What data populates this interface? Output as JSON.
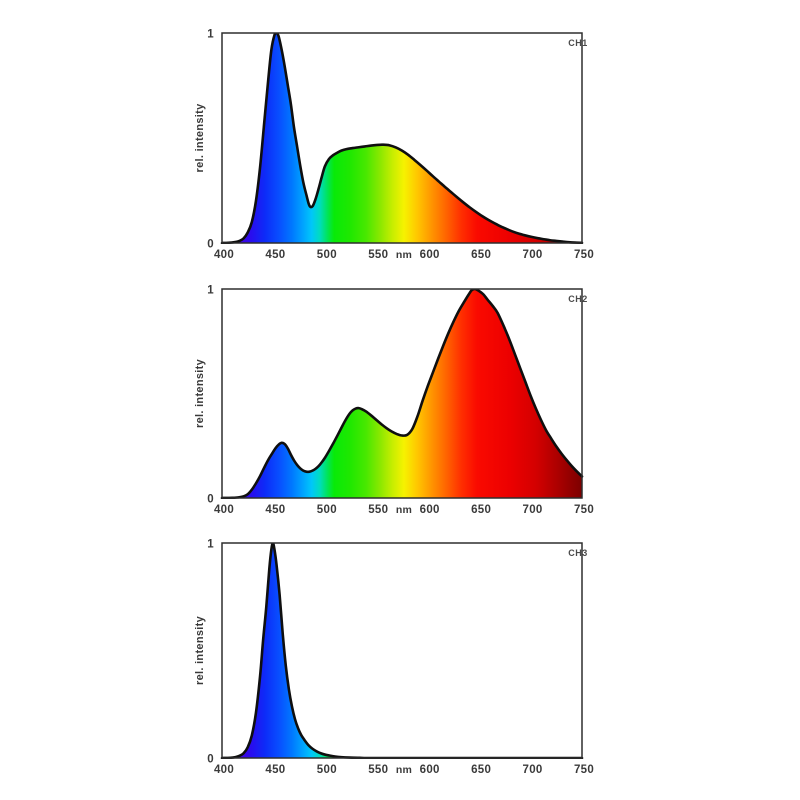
{
  "figure": {
    "background": "#ffffff",
    "border_color": "#2e2e2e",
    "curve_color": "#0f0f0f",
    "tick_text_color": "#3a3a3a",
    "channel_text_color": "#4a4a4a",
    "y_axis_label": "rel. intensity",
    "x_unit_label": "nm"
  },
  "spectrum_gradient": [
    {
      "nm": 400,
      "color": "#7000c8"
    },
    {
      "nm": 414,
      "color": "#4a00e0"
    },
    {
      "nm": 428,
      "color": "#2a0cee"
    },
    {
      "nm": 442,
      "color": "#0d2cf8"
    },
    {
      "nm": 456,
      "color": "#0850ff"
    },
    {
      "nm": 468,
      "color": "#0078ff"
    },
    {
      "nm": 478,
      "color": "#00a0ff"
    },
    {
      "nm": 487,
      "color": "#00c6fa"
    },
    {
      "nm": 495,
      "color": "#00dcc0"
    },
    {
      "nm": 502,
      "color": "#00e460"
    },
    {
      "nm": 509,
      "color": "#08ea08"
    },
    {
      "nm": 525,
      "color": "#20e800"
    },
    {
      "nm": 540,
      "color": "#48e800"
    },
    {
      "nm": 554,
      "color": "#8ce800"
    },
    {
      "nm": 566,
      "color": "#c8ee00"
    },
    {
      "nm": 577,
      "color": "#f6f200"
    },
    {
      "nm": 590,
      "color": "#ffc600"
    },
    {
      "nm": 604,
      "color": "#ff9400"
    },
    {
      "nm": 618,
      "color": "#ff6400"
    },
    {
      "nm": 633,
      "color": "#ff2e00"
    },
    {
      "nm": 648,
      "color": "#fa0a00"
    },
    {
      "nm": 680,
      "color": "#ec0000"
    },
    {
      "nm": 705,
      "color": "#d40000"
    },
    {
      "nm": 725,
      "color": "#ae0000"
    },
    {
      "nm": 750,
      "color": "#7c0000"
    }
  ],
  "chart_data": [
    {
      "type": "area",
      "channel": "CH1",
      "xlabel": "nm",
      "ylabel": "rel. intensity",
      "xlim": [
        400,
        750
      ],
      "ylim": [
        0,
        1
      ],
      "x_ticks": [
        400,
        450,
        500,
        550,
        600,
        650,
        700,
        750
      ],
      "y_ticks": [
        0,
        1
      ],
      "fill": "spectrum-gradient",
      "points": [
        [
          400,
          0
        ],
        [
          406,
          0.001
        ],
        [
          412,
          0.004
        ],
        [
          417,
          0.01
        ],
        [
          421,
          0.022
        ],
        [
          425,
          0.05
        ],
        [
          429,
          0.1
        ],
        [
          433,
          0.2
        ],
        [
          437,
          0.36
        ],
        [
          441,
          0.57
        ],
        [
          445,
          0.78
        ],
        [
          448,
          0.92
        ],
        [
          451,
          0.99
        ],
        [
          453,
          1.0
        ],
        [
          455,
          0.985
        ],
        [
          458,
          0.92
        ],
        [
          461,
          0.84
        ],
        [
          464,
          0.75
        ],
        [
          467,
          0.66
        ],
        [
          470,
          0.55
        ],
        [
          473,
          0.46
        ],
        [
          476,
          0.37
        ],
        [
          479,
          0.29
        ],
        [
          482,
          0.23
        ],
        [
          485,
          0.178
        ],
        [
          488,
          0.175
        ],
        [
          491,
          0.21
        ],
        [
          494,
          0.26
        ],
        [
          497,
          0.315
        ],
        [
          500,
          0.365
        ],
        [
          504,
          0.4
        ],
        [
          508,
          0.418
        ],
        [
          512,
          0.43
        ],
        [
          516,
          0.44
        ],
        [
          521,
          0.447
        ],
        [
          527,
          0.452
        ],
        [
          533,
          0.456
        ],
        [
          539,
          0.46
        ],
        [
          545,
          0.464
        ],
        [
          551,
          0.467
        ],
        [
          557,
          0.468
        ],
        [
          563,
          0.465
        ],
        [
          569,
          0.455
        ],
        [
          575,
          0.44
        ],
        [
          581,
          0.42
        ],
        [
          587,
          0.396
        ],
        [
          593,
          0.371
        ],
        [
          599,
          0.345
        ],
        [
          605,
          0.318
        ],
        [
          611,
          0.292
        ],
        [
          617,
          0.266
        ],
        [
          623,
          0.241
        ],
        [
          629,
          0.216
        ],
        [
          635,
          0.192
        ],
        [
          641,
          0.169
        ],
        [
          647,
          0.148
        ],
        [
          653,
          0.128
        ],
        [
          659,
          0.11
        ],
        [
          665,
          0.094
        ],
        [
          671,
          0.079
        ],
        [
          677,
          0.066
        ],
        [
          683,
          0.054
        ],
        [
          689,
          0.044
        ],
        [
          695,
          0.036
        ],
        [
          701,
          0.029
        ],
        [
          707,
          0.023
        ],
        [
          713,
          0.018
        ],
        [
          719,
          0.013
        ],
        [
          725,
          0.01
        ],
        [
          731,
          0.007
        ],
        [
          737,
          0.004
        ],
        [
          743,
          0.002
        ],
        [
          750,
          0.001
        ]
      ]
    },
    {
      "type": "area",
      "channel": "CH2",
      "xlabel": "nm",
      "ylabel": "rel. intensity",
      "xlim": [
        400,
        750
      ],
      "ylim": [
        0,
        1
      ],
      "x_ticks": [
        400,
        450,
        500,
        550,
        600,
        650,
        700,
        750
      ],
      "y_ticks": [
        0,
        1
      ],
      "fill": "spectrum-gradient",
      "points": [
        [
          400,
          0
        ],
        [
          410,
          0.001
        ],
        [
          416,
          0.003
        ],
        [
          421,
          0.008
        ],
        [
          425,
          0.018
        ],
        [
          429,
          0.04
        ],
        [
          433,
          0.07
        ],
        [
          437,
          0.105
        ],
        [
          441,
          0.145
        ],
        [
          445,
          0.183
        ],
        [
          449,
          0.215
        ],
        [
          452,
          0.238
        ],
        [
          455,
          0.255
        ],
        [
          458,
          0.264
        ],
        [
          461,
          0.258
        ],
        [
          464,
          0.237
        ],
        [
          467,
          0.207
        ],
        [
          470,
          0.18
        ],
        [
          473,
          0.158
        ],
        [
          476,
          0.142
        ],
        [
          479,
          0.131
        ],
        [
          482,
          0.126
        ],
        [
          485,
          0.126
        ],
        [
          488,
          0.131
        ],
        [
          491,
          0.14
        ],
        [
          494,
          0.153
        ],
        [
          497,
          0.171
        ],
        [
          500,
          0.192
        ],
        [
          504,
          0.225
        ],
        [
          508,
          0.26
        ],
        [
          512,
          0.297
        ],
        [
          516,
          0.335
        ],
        [
          520,
          0.372
        ],
        [
          524,
          0.403
        ],
        [
          527,
          0.419
        ],
        [
          530,
          0.428
        ],
        [
          533,
          0.43
        ],
        [
          536,
          0.425
        ],
        [
          540,
          0.414
        ],
        [
          545,
          0.395
        ],
        [
          550,
          0.374
        ],
        [
          555,
          0.353
        ],
        [
          560,
          0.334
        ],
        [
          565,
          0.318
        ],
        [
          570,
          0.306
        ],
        [
          575,
          0.299
        ],
        [
          580,
          0.302
        ],
        [
          585,
          0.33
        ],
        [
          590,
          0.39
        ],
        [
          595,
          0.465
        ],
        [
          600,
          0.535
        ],
        [
          605,
          0.6
        ],
        [
          610,
          0.665
        ],
        [
          615,
          0.728
        ],
        [
          620,
          0.788
        ],
        [
          625,
          0.843
        ],
        [
          630,
          0.893
        ],
        [
          635,
          0.935
        ],
        [
          640,
          0.975
        ],
        [
          643,
          0.995
        ],
        [
          646,
          1.0
        ],
        [
          650,
          0.99
        ],
        [
          654,
          0.975
        ],
        [
          658,
          0.95
        ],
        [
          663,
          0.92
        ],
        [
          668,
          0.885
        ],
        [
          675,
          0.81
        ],
        [
          680,
          0.75
        ],
        [
          685,
          0.685
        ],
        [
          690,
          0.62
        ],
        [
          695,
          0.555
        ],
        [
          700,
          0.49
        ],
        [
          705,
          0.43
        ],
        [
          710,
          0.375
        ],
        [
          715,
          0.325
        ],
        [
          720,
          0.285
        ],
        [
          725,
          0.247
        ],
        [
          730,
          0.213
        ],
        [
          735,
          0.182
        ],
        [
          740,
          0.153
        ],
        [
          745,
          0.127
        ],
        [
          750,
          0.103
        ]
      ]
    },
    {
      "type": "area",
      "channel": "CH3",
      "xlabel": "nm",
      "ylabel": "rel. intensity",
      "xlim": [
        400,
        750
      ],
      "ylim": [
        0,
        1
      ],
      "x_ticks": [
        400,
        450,
        500,
        550,
        600,
        650,
        700,
        750
      ],
      "y_ticks": [
        0,
        1
      ],
      "fill": "spectrum-gradient",
      "points": [
        [
          400,
          0
        ],
        [
          408,
          0.001
        ],
        [
          413,
          0.004
        ],
        [
          417,
          0.01
        ],
        [
          421,
          0.022
        ],
        [
          425,
          0.05
        ],
        [
          429,
          0.105
        ],
        [
          433,
          0.21
        ],
        [
          437,
          0.38
        ],
        [
          440,
          0.55
        ],
        [
          443,
          0.7
        ],
        [
          446,
          0.88
        ],
        [
          448,
          0.97
        ],
        [
          449.5,
          1.0
        ],
        [
          451,
          0.97
        ],
        [
          453,
          0.9
        ],
        [
          456,
          0.76
        ],
        [
          459,
          0.58
        ],
        [
          462,
          0.43
        ],
        [
          465,
          0.32
        ],
        [
          468,
          0.24
        ],
        [
          471,
          0.18
        ],
        [
          474,
          0.138
        ],
        [
          477,
          0.107
        ],
        [
          480,
          0.085
        ],
        [
          484,
          0.06
        ],
        [
          488,
          0.043
        ],
        [
          492,
          0.031
        ],
        [
          496,
          0.022
        ],
        [
          500,
          0.016
        ],
        [
          505,
          0.011
        ],
        [
          510,
          0.007
        ],
        [
          516,
          0.004
        ],
        [
          524,
          0.002
        ],
        [
          534,
          0.001
        ],
        [
          550,
          0
        ],
        [
          650,
          0
        ],
        [
          750,
          0
        ]
      ]
    }
  ]
}
